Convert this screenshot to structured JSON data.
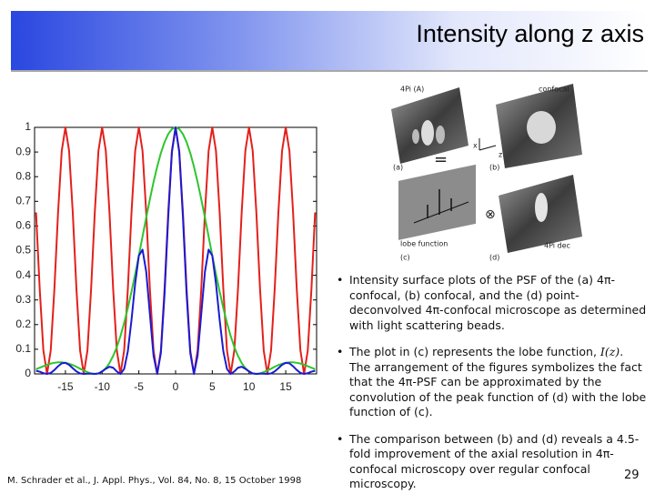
{
  "header": {
    "title": "Intensity along z axis"
  },
  "figure": {
    "labels": [
      "4Pi (A)",
      "confocal",
      "(a)",
      "(b)",
      "lobe function",
      "(c)",
      "(d)",
      "4Pi dec",
      "=",
      "⊗",
      "x",
      "z"
    ]
  },
  "chart_data": {
    "type": "line",
    "x": [
      -19,
      -18.5,
      -18,
      -17.5,
      -17,
      -16.5,
      -16,
      -15.5,
      -15,
      -14.5,
      -14,
      -13.5,
      -13,
      -12.5,
      -12,
      -11.5,
      -11,
      -10.5,
      -10,
      -9.5,
      -9,
      -8.5,
      -8,
      -7.5,
      -7,
      -6.5,
      -6,
      -5.5,
      -5,
      -4.5,
      -4,
      -3.5,
      -3,
      -2.5,
      -2,
      -1.5,
      -1,
      -0.5,
      0,
      0.5,
      1,
      1.5,
      2,
      2.5,
      3,
      3.5,
      4,
      4.5,
      5,
      5.5,
      6,
      6.5,
      7,
      7.5,
      8,
      8.5,
      9,
      9.5,
      10,
      10.5,
      11,
      11.5,
      12,
      12.5,
      13,
      13.5,
      14,
      14.5,
      15,
      15.5,
      16,
      16.5,
      17,
      17.5,
      18,
      18.5,
      19
    ],
    "series": [
      {
        "color": "#e3201b",
        "values": [
          0.655,
          0.345,
          0.095,
          0,
          0.095,
          0.345,
          0.655,
          0.905,
          1,
          0.905,
          0.655,
          0.345,
          0.095,
          0,
          0.095,
          0.345,
          0.655,
          0.905,
          1,
          0.905,
          0.655,
          0.345,
          0.095,
          0,
          0.095,
          0.345,
          0.655,
          0.905,
          1,
          0.905,
          0.655,
          0.345,
          0.095,
          0,
          0.095,
          0.345,
          0.655,
          0.905,
          1,
          0.905,
          0.655,
          0.345,
          0.095,
          0,
          0.095,
          0.345,
          0.655,
          0.905,
          1,
          0.905,
          0.655,
          0.345,
          0.095,
          0,
          0.095,
          0.345,
          0.655,
          0.905,
          1,
          0.905,
          0.655,
          0.345,
          0.095,
          0,
          0.095,
          0.345,
          0.655,
          0.905,
          1,
          0.905,
          0.655,
          0.345,
          0.095,
          0,
          0.095,
          0.345,
          0.655
        ]
      },
      {
        "color": "#2fc52f",
        "values": [
          0.019,
          0.025,
          0.031,
          0.037,
          0.042,
          0.045,
          0.047,
          0.047,
          0.045,
          0.041,
          0.036,
          0.029,
          0.021,
          0.014,
          0.007,
          0.002,
          0,
          0.002,
          0.01,
          0.023,
          0.044,
          0.073,
          0.109,
          0.154,
          0.207,
          0.267,
          0.334,
          0.405,
          0.48,
          0.557,
          0.634,
          0.708,
          0.778,
          0.841,
          0.896,
          0.94,
          0.973,
          0.993,
          1,
          0.993,
          0.973,
          0.94,
          0.896,
          0.841,
          0.778,
          0.708,
          0.634,
          0.557,
          0.48,
          0.405,
          0.334,
          0.267,
          0.207,
          0.154,
          0.109,
          0.073,
          0.044,
          0.023,
          0.01,
          0.002,
          0,
          0.002,
          0.007,
          0.014,
          0.021,
          0.029,
          0.036,
          0.041,
          0.045,
          0.047,
          0.047,
          0.045,
          0.042,
          0.037,
          0.031,
          0.025,
          0.019
        ]
      },
      {
        "color": "#1b1bd2",
        "values": [
          0.013,
          0.009,
          0.003,
          0,
          0.004,
          0.016,
          0.031,
          0.043,
          0.045,
          0.037,
          0.023,
          0.01,
          0.002,
          0,
          0.001,
          0.001,
          0,
          0.002,
          0.01,
          0.021,
          0.029,
          0.025,
          0.01,
          0,
          0.02,
          0.092,
          0.219,
          0.367,
          0.48,
          0.504,
          0.415,
          0.244,
          0.074,
          0,
          0.085,
          0.324,
          0.637,
          0.899,
          1,
          0.899,
          0.637,
          0.324,
          0.085,
          0,
          0.074,
          0.244,
          0.415,
          0.504,
          0.48,
          0.367,
          0.219,
          0.092,
          0.02,
          0,
          0.01,
          0.025,
          0.029,
          0.021,
          0.01,
          0.002,
          0,
          0.001,
          0.001,
          0,
          0.002,
          0.01,
          0.023,
          0.037,
          0.045,
          0.043,
          0.031,
          0.016,
          0.004,
          0,
          0.003,
          0.009,
          0.013
        ]
      }
    ],
    "xlim": [
      -19.2,
      19.2
    ],
    "ylim": [
      0,
      1
    ],
    "xticks": [
      -15,
      -10,
      -5,
      0,
      5,
      10,
      15
    ],
    "yticks": [
      0,
      0.1,
      0.2,
      0.3,
      0.4,
      0.5,
      0.6,
      0.7,
      0.8,
      0.9,
      1
    ],
    "grid": false
  },
  "bullets": [
    {
      "parts": [
        "Intensity surface plots of the PSF of the (a) 4π-confocal, (b) confocal, and the (d) point-deconvolved 4π-confocal microscope as determined with light scattering beads."
      ]
    },
    {
      "parts": [
        "The plot in (c) represents the lobe function, ",
        "I(z)",
        ". The arrangement of the figures symbolizes the fact that the 4π-PSF can be approximated by the convolution of the peak function of (d) with the lobe function of (c)."
      ]
    },
    {
      "parts": [
        "The comparison between (b) and (d) reveals a 4.5-fold improvement of the axial resolution in 4π-confocal microscopy over regular confocal microscopy."
      ]
    }
  ],
  "citation": "M. Schrader et al., J. Appl. Phys., Vol. 84, No. 8, 15 October 1998",
  "page_number": "29"
}
